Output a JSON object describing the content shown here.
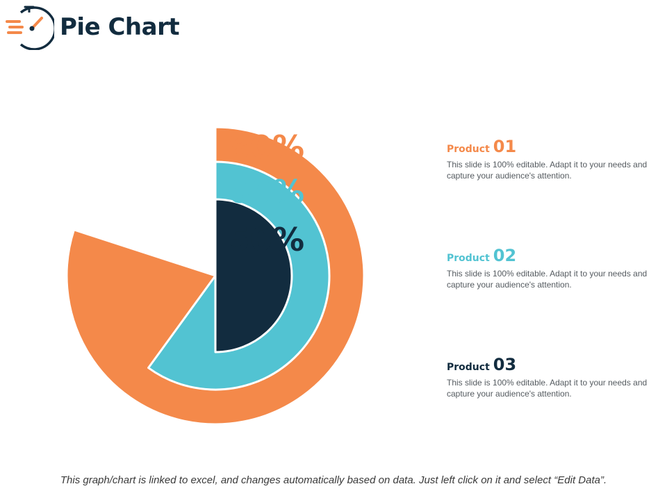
{
  "page": {
    "title": "Pie Chart"
  },
  "colors": {
    "orange": "#f4894a",
    "teal": "#52c3d2",
    "navy": "#122c3f",
    "text": "#555b60"
  },
  "icons": {
    "logo": "speed-stopwatch-icon"
  },
  "chart_data": {
    "type": "pie",
    "title": "",
    "series": [
      {
        "value": 80,
        "label": "80%",
        "color": "#f4894a"
      },
      {
        "value": 60,
        "label": "60%",
        "color": "#52c3d2"
      },
      {
        "value": 50,
        "label": "50%",
        "color": "#122c3f"
      }
    ]
  },
  "legend": [
    {
      "word": "Product",
      "number": "01",
      "color": "#f4894a",
      "desc": "This slide is 100% editable. Adapt it to your needs and capture your audience's attention."
    },
    {
      "word": "Product",
      "number": "02",
      "color": "#52c3d2",
      "desc": "This slide is 100% editable. Adapt it to your needs and capture your audience's attention."
    },
    {
      "word": "Product",
      "number": "03",
      "color": "#122c3f",
      "desc": "This slide is 100% editable. Adapt it to your needs and capture your audience's attention."
    }
  ],
  "footnote": "This graph/chart is linked to excel, and changes automatically based on data. Just left click on it and select “Edit Data”."
}
